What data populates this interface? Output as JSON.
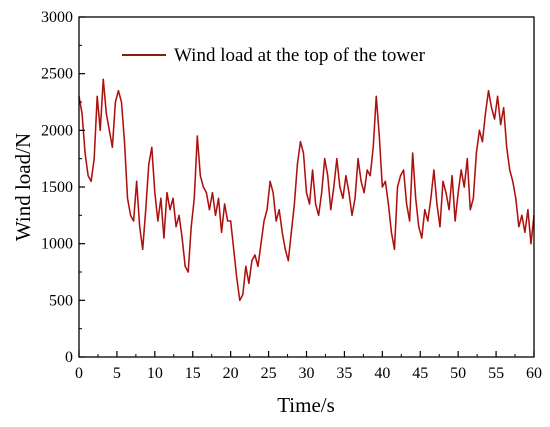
{
  "chart_data": {
    "type": "line",
    "title": "",
    "xlabel": "Time/s",
    "ylabel": "Wind load/N",
    "xlim": [
      0,
      60
    ],
    "ylim": [
      0,
      3000
    ],
    "x_ticks": [
      0,
      5,
      10,
      15,
      20,
      25,
      30,
      35,
      40,
      45,
      50,
      55,
      60
    ],
    "y_ticks": [
      0,
      500,
      1000,
      1500,
      2000,
      2500,
      3000
    ],
    "grid": false,
    "legend_position": "top",
    "series": [
      {
        "name": "Wind load at the top of the tower",
        "color": "#e8141c",
        "line_color": "#8b1a10",
        "x": [
          0,
          0.4,
          0.8,
          1.2,
          1.6,
          2.0,
          2.4,
          2.8,
          3.2,
          3.6,
          4.0,
          4.4,
          4.8,
          5.2,
          5.6,
          6.0,
          6.4,
          6.8,
          7.2,
          7.6,
          8.0,
          8.4,
          8.8,
          9.2,
          9.6,
          10.0,
          10.4,
          10.8,
          11.2,
          11.6,
          12.0,
          12.4,
          12.8,
          13.2,
          13.6,
          14.0,
          14.4,
          14.8,
          15.2,
          15.6,
          16.0,
          16.4,
          16.8,
          17.2,
          17.6,
          18.0,
          18.4,
          18.8,
          19.2,
          19.6,
          20.0,
          20.4,
          20.8,
          21.2,
          21.6,
          22.0,
          22.4,
          22.8,
          23.2,
          23.6,
          24.0,
          24.4,
          24.8,
          25.2,
          25.6,
          26.0,
          26.4,
          26.8,
          27.2,
          27.6,
          28.0,
          28.4,
          28.8,
          29.2,
          29.6,
          30.0,
          30.4,
          30.8,
          31.2,
          31.6,
          32.0,
          32.4,
          32.8,
          33.2,
          33.6,
          34.0,
          34.4,
          34.8,
          35.2,
          35.6,
          36.0,
          36.4,
          36.8,
          37.2,
          37.6,
          38.0,
          38.4,
          38.8,
          39.2,
          39.6,
          40.0,
          40.4,
          40.8,
          41.2,
          41.6,
          42.0,
          42.4,
          42.8,
          43.2,
          43.6,
          44.0,
          44.4,
          44.8,
          45.2,
          45.6,
          46.0,
          46.4,
          46.8,
          47.2,
          47.6,
          48.0,
          48.4,
          48.8,
          49.2,
          49.6,
          50.0,
          50.4,
          50.8,
          51.2,
          51.6,
          52.0,
          52.4,
          52.8,
          53.2,
          53.6,
          54.0,
          54.4,
          54.8,
          55.2,
          55.6,
          56.0,
          56.4,
          56.8,
          57.2,
          57.6,
          58.0,
          58.4,
          58.8,
          59.2,
          59.6,
          60.0
        ],
        "values": [
          2300,
          2150,
          1800,
          1600,
          1550,
          1750,
          2300,
          2000,
          2450,
          2150,
          2000,
          1850,
          2250,
          2350,
          2250,
          1900,
          1400,
          1250,
          1200,
          1550,
          1150,
          950,
          1300,
          1700,
          1850,
          1450,
          1200,
          1400,
          1050,
          1450,
          1300,
          1400,
          1150,
          1250,
          1050,
          800,
          750,
          1150,
          1400,
          1950,
          1600,
          1500,
          1450,
          1300,
          1450,
          1250,
          1400,
          1100,
          1350,
          1200,
          1200,
          950,
          700,
          500,
          550,
          800,
          650,
          850,
          900,
          800,
          1000,
          1200,
          1300,
          1550,
          1450,
          1200,
          1300,
          1100,
          950,
          850,
          1100,
          1350,
          1700,
          1900,
          1800,
          1450,
          1350,
          1650,
          1350,
          1250,
          1450,
          1750,
          1600,
          1300,
          1500,
          1750,
          1500,
          1400,
          1600,
          1450,
          1250,
          1400,
          1750,
          1550,
          1450,
          1650,
          1600,
          1850,
          2300,
          1950,
          1500,
          1550,
          1350,
          1100,
          950,
          1500,
          1600,
          1650,
          1350,
          1200,
          1800,
          1400,
          1150,
          1050,
          1300,
          1200,
          1400,
          1650,
          1350,
          1150,
          1550,
          1450,
          1300,
          1600,
          1200,
          1450,
          1650,
          1500,
          1750,
          1300,
          1400,
          1800,
          2000,
          1900,
          2150,
          2350,
          2200,
          2100,
          2300,
          2050,
          2200,
          1850,
          1650,
          1550,
          1400,
          1150,
          1250,
          1100,
          1300,
          1000,
          1250
        ]
      }
    ]
  }
}
